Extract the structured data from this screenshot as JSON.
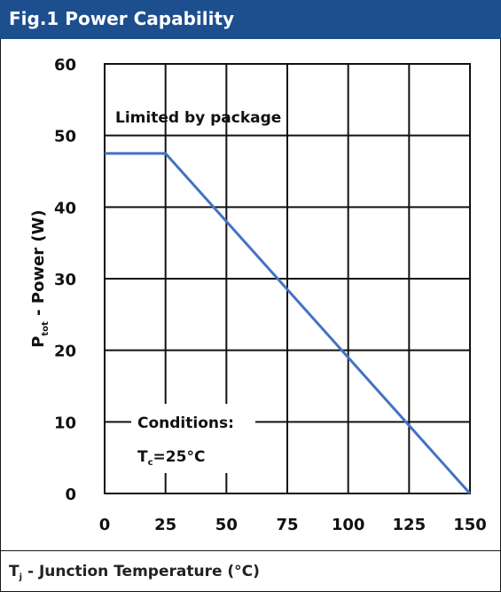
{
  "header": {
    "title": "Fig.1 Power Capability"
  },
  "footer": {
    "xlabel_main": "T",
    "xlabel_sub": "j",
    "xlabel_rest": " - Junction Temperature (°C)"
  },
  "chart_data": {
    "type": "line",
    "title": "Fig.1 Power Capability",
    "xlabel": "Tj - Junction Temperature (°C)",
    "ylabel": "Ptot - Power (W)",
    "ylabel_parts": {
      "main": "P",
      "sub": "tot",
      "rest": " - Power (W)"
    },
    "xlim": [
      0,
      150
    ],
    "ylim": [
      0,
      60
    ],
    "xticks": [
      0,
      25,
      50,
      75,
      100,
      125,
      150
    ],
    "yticks": [
      0,
      10,
      20,
      30,
      40,
      50,
      60
    ],
    "grid": true,
    "series": [
      {
        "x": [
          0,
          25,
          150
        ],
        "y": [
          47.5,
          47.5,
          0
        ],
        "color": "#4472c4"
      }
    ],
    "annotations": {
      "limit": "Limited by package",
      "conditions": "Conditions:",
      "tc_main": "T",
      "tc_sub": "c",
      "tc_rest": "=25°C"
    }
  }
}
